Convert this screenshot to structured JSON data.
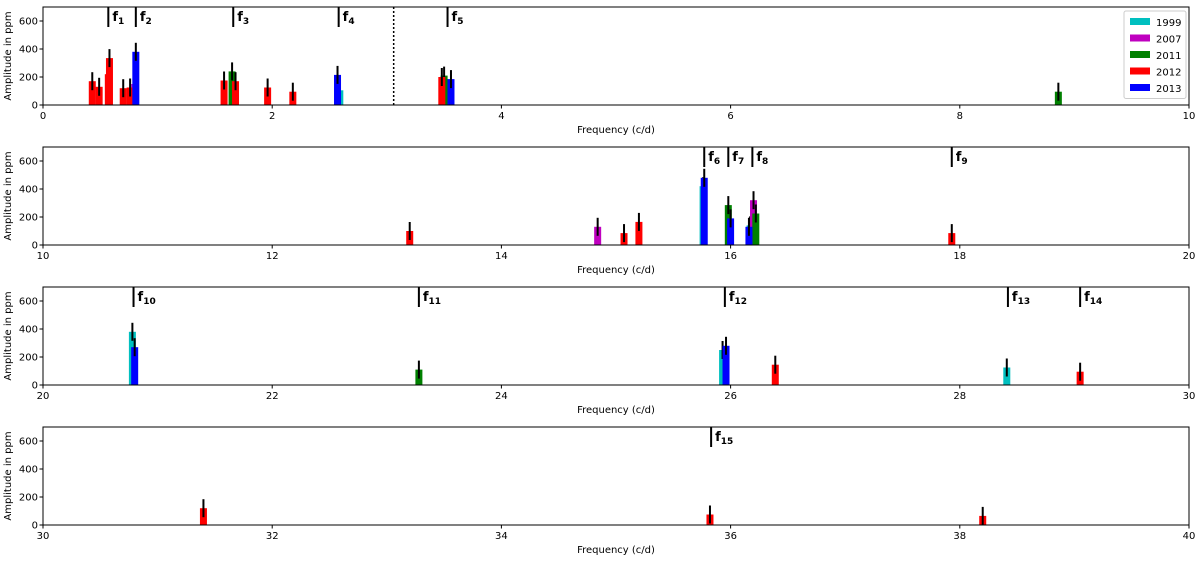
{
  "colors": {
    "1999": "#00bfbf",
    "2007": "#bf00bf",
    "2011": "#008000",
    "2012": "#ff0000",
    "2013": "#0000ff",
    "error_bar": "#000000"
  },
  "legend": {
    "placement": "top-right",
    "entries": [
      "1999",
      "2007",
      "2011",
      "2012",
      "2013"
    ]
  },
  "chart_data": [
    {
      "type": "bar",
      "xlabel": "Frequency (c/d)",
      "ylabel": "Amplitude in ppm",
      "xlim": [
        0,
        10
      ],
      "ylim": [
        0,
        700
      ],
      "xticks": [
        0,
        2,
        4,
        6,
        8,
        10
      ],
      "yticks": [
        0,
        200,
        400,
        600
      ],
      "show_legend": true,
      "dotted_line_x": 3.06,
      "markers": [
        {
          "base": "f",
          "sub": "1",
          "x": 0.57
        },
        {
          "base": "f",
          "sub": "2",
          "x": 0.81
        },
        {
          "base": "f",
          "sub": "3",
          "x": 1.66
        },
        {
          "base": "f",
          "sub": "4",
          "x": 2.58
        },
        {
          "base": "f",
          "sub": "5",
          "x": 3.53
        }
      ],
      "series": [
        {
          "name": "1999",
          "points": [
            {
              "x": 2.59,
              "y": 105
            }
          ]
        },
        {
          "name": "2007",
          "points": [
            {
              "x": 0.8,
              "y": 150
            }
          ]
        },
        {
          "name": "2011",
          "points": [
            {
              "x": 1.65,
              "y": 240
            },
            {
              "x": 3.5,
              "y": 210
            },
            {
              "x": 8.86,
              "y": 95
            }
          ]
        },
        {
          "name": "2012",
          "points": [
            {
              "x": 0.43,
              "y": 170
            },
            {
              "x": 0.49,
              "y": 130
            },
            {
              "x": 0.57,
              "y": 220
            },
            {
              "x": 0.58,
              "y": 335
            },
            {
              "x": 0.7,
              "y": 120
            },
            {
              "x": 0.76,
              "y": 125
            },
            {
              "x": 1.58,
              "y": 175
            },
            {
              "x": 1.68,
              "y": 170
            },
            {
              "x": 1.96,
              "y": 125
            },
            {
              "x": 2.18,
              "y": 95
            },
            {
              "x": 3.48,
              "y": 200
            }
          ]
        },
        {
          "name": "2013",
          "points": [
            {
              "x": 0.81,
              "y": 380
            },
            {
              "x": 2.57,
              "y": 215
            },
            {
              "x": 3.56,
              "y": 185
            }
          ]
        }
      ]
    },
    {
      "type": "bar",
      "xlabel": "Frequency (c/d)",
      "ylabel": "Amplitude in ppm",
      "xlim": [
        10,
        20
      ],
      "ylim": [
        0,
        700
      ],
      "xticks": [
        10,
        12,
        14,
        16,
        18,
        20
      ],
      "yticks": [
        0,
        200,
        400,
        600
      ],
      "show_legend": false,
      "markers": [
        {
          "base": "f",
          "sub": "6",
          "x": 15.77
        },
        {
          "base": "f",
          "sub": "7",
          "x": 15.98
        },
        {
          "base": "f",
          "sub": "8",
          "x": 16.19
        },
        {
          "base": "f",
          "sub": "9",
          "x": 17.93
        }
      ],
      "series": [
        {
          "name": "1999",
          "points": [
            {
              "x": 15.76,
              "y": 420
            },
            {
              "x": 16.17,
              "y": 140
            }
          ]
        },
        {
          "name": "2007",
          "points": [
            {
              "x": 14.84,
              "y": 130
            },
            {
              "x": 16.2,
              "y": 320
            }
          ]
        },
        {
          "name": "2011",
          "points": [
            {
              "x": 15.98,
              "y": 285
            },
            {
              "x": 16.22,
              "y": 225
            }
          ]
        },
        {
          "name": "2012",
          "points": [
            {
              "x": 13.2,
              "y": 100
            },
            {
              "x": 15.07,
              "y": 85
            },
            {
              "x": 15.2,
              "y": 165
            },
            {
              "x": 17.93,
              "y": 85
            }
          ]
        },
        {
          "name": "2013",
          "points": [
            {
              "x": 15.77,
              "y": 480
            },
            {
              "x": 16.0,
              "y": 190
            },
            {
              "x": 16.16,
              "y": 130
            }
          ]
        }
      ]
    },
    {
      "type": "bar",
      "xlabel": "Frequency (c/d)",
      "ylabel": "Amplitude in ppm",
      "xlim": [
        20,
        30
      ],
      "ylim": [
        0,
        700
      ],
      "xticks": [
        20,
        22,
        24,
        26,
        28,
        30
      ],
      "yticks": [
        0,
        200,
        400,
        600
      ],
      "show_legend": false,
      "markers": [
        {
          "base": "f",
          "sub": "10",
          "x": 20.79
        },
        {
          "base": "f",
          "sub": "11",
          "x": 23.28
        },
        {
          "base": "f",
          "sub": "12",
          "x": 25.95
        },
        {
          "base": "f",
          "sub": "13",
          "x": 28.42
        },
        {
          "base": "f",
          "sub": "14",
          "x": 29.05
        }
      ],
      "series": [
        {
          "name": "1999",
          "points": [
            {
              "x": 20.78,
              "y": 380
            },
            {
              "x": 25.93,
              "y": 250
            },
            {
              "x": 28.41,
              "y": 125
            }
          ]
        },
        {
          "name": "2011",
          "points": [
            {
              "x": 23.28,
              "y": 110
            }
          ]
        },
        {
          "name": "2012",
          "points": [
            {
              "x": 26.39,
              "y": 145
            },
            {
              "x": 29.05,
              "y": 95
            }
          ]
        },
        {
          "name": "2013",
          "points": [
            {
              "x": 20.8,
              "y": 270
            },
            {
              "x": 25.96,
              "y": 280
            }
          ]
        }
      ]
    },
    {
      "type": "bar",
      "xlabel": "Frequency (c/d)",
      "ylabel": "Amplitude in ppm",
      "xlim": [
        30,
        40
      ],
      "ylim": [
        0,
        700
      ],
      "xticks": [
        30,
        32,
        34,
        36,
        38,
        40
      ],
      "yticks": [
        0,
        200,
        400,
        600
      ],
      "show_legend": false,
      "markers": [
        {
          "base": "f",
          "sub": "15",
          "x": 35.83
        }
      ],
      "series": [
        {
          "name": "2012",
          "points": [
            {
              "x": 31.4,
              "y": 120
            },
            {
              "x": 35.82,
              "y": 75
            },
            {
              "x": 38.2,
              "y": 65
            }
          ]
        }
      ]
    }
  ]
}
